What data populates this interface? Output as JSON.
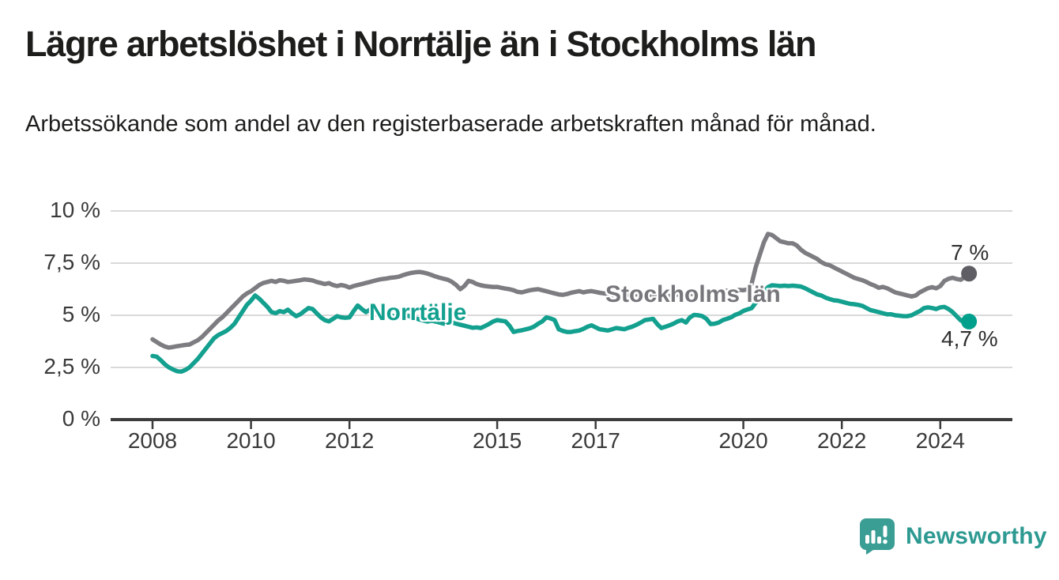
{
  "title": "Lägre arbetslöshet i Norrtälje än i Stockholms län",
  "subtitle": "Arbetssökande som andel av den registerbaserade arbetskraften månad för månad.",
  "logo": {
    "text": "Newsworthy"
  },
  "colors": {
    "stockholm_line": "#7c7c81",
    "stockholm_dot": "#5e5e64",
    "norrtalje_line": "#13a08f",
    "norrtalje_dot": "#00a08c",
    "gridline": "#d9d9d9",
    "axis": "#3c3c3c",
    "label_text": "#3a3a3a"
  },
  "chart_data": {
    "type": "line",
    "title": "Lägre arbetslöshet i Norrtälje än i Stockholms län",
    "subtitle": "Arbetssökande som andel av den registerbaserade arbetskraften månad för månad.",
    "unit": "%",
    "x_start_year": 2008,
    "points_per_year": 12,
    "x_end_label_note": "last point ≈ mitten av 2024",
    "ylim": [
      0,
      10
    ],
    "grid": true,
    "legend_position": "inline-labels",
    "y_ticks": [
      {
        "value": 0,
        "label": "0 %"
      },
      {
        "value": 2.5,
        "label": "2,5 %"
      },
      {
        "value": 5,
        "label": "5 %"
      },
      {
        "value": 7.5,
        "label": "7,5 %"
      },
      {
        "value": 10,
        "label": "10 %"
      }
    ],
    "x_ticks": [
      {
        "year": 2008,
        "label": "2008"
      },
      {
        "year": 2010,
        "label": "2010"
      },
      {
        "year": 2012,
        "label": "2012"
      },
      {
        "year": 2015,
        "label": "2015"
      },
      {
        "year": 2017,
        "label": "2017"
      },
      {
        "year": 2020,
        "label": "2020"
      },
      {
        "year": 2022,
        "label": "2022"
      },
      {
        "year": 2024,
        "label": "2024"
      }
    ],
    "series": [
      {
        "name": "Stockholms län",
        "color": "#7c7c81",
        "dot_color": "#5e5e64",
        "end_label": "7 %",
        "end_value": 7.0,
        "values": [
          3.85,
          3.72,
          3.6,
          3.5,
          3.45,
          3.48,
          3.52,
          3.55,
          3.58,
          3.6,
          3.7,
          3.8,
          3.95,
          4.15,
          4.35,
          4.55,
          4.75,
          4.9,
          5.1,
          5.3,
          5.5,
          5.7,
          5.9,
          6.05,
          6.15,
          6.3,
          6.45,
          6.55,
          6.6,
          6.65,
          6.6,
          6.68,
          6.65,
          6.6,
          6.62,
          6.65,
          6.68,
          6.72,
          6.7,
          6.67,
          6.6,
          6.55,
          6.5,
          6.54,
          6.45,
          6.4,
          6.45,
          6.41,
          6.33,
          6.4,
          6.45,
          6.5,
          6.55,
          6.6,
          6.65,
          6.7,
          6.74,
          6.76,
          6.8,
          6.82,
          6.85,
          6.92,
          6.98,
          7.03,
          7.06,
          7.08,
          7.05,
          7.0,
          6.93,
          6.86,
          6.8,
          6.75,
          6.7,
          6.6,
          6.45,
          6.25,
          6.4,
          6.65,
          6.6,
          6.5,
          6.44,
          6.4,
          6.38,
          6.36,
          6.36,
          6.32,
          6.28,
          6.25,
          6.2,
          6.12,
          6.1,
          6.15,
          6.2,
          6.23,
          6.25,
          6.2,
          6.15,
          6.1,
          6.05,
          6.0,
          5.98,
          6.02,
          6.08,
          6.12,
          6.16,
          6.1,
          6.14,
          6.16,
          6.12,
          6.08,
          6.05,
          6.02,
          5.98,
          5.95,
          5.92,
          5.95,
          6.0,
          6.02,
          6.0,
          6.02,
          5.98,
          5.95,
          5.9,
          5.88,
          5.92,
          5.96,
          5.92,
          5.96,
          6.0,
          6.04,
          6.0,
          6.04,
          6.0,
          6.05,
          6.08,
          6.05,
          6.1,
          6.14,
          6.1,
          6.14,
          6.18,
          6.14,
          6.18,
          6.22,
          6.2,
          6.25,
          6.5,
          7.3,
          7.9,
          8.5,
          8.9,
          8.85,
          8.7,
          8.55,
          8.5,
          8.45,
          8.45,
          8.35,
          8.15,
          8.0,
          7.9,
          7.8,
          7.7,
          7.55,
          7.45,
          7.4,
          7.3,
          7.2,
          7.1,
          7.0,
          6.9,
          6.8,
          6.74,
          6.68,
          6.6,
          6.5,
          6.42,
          6.32,
          6.36,
          6.3,
          6.2,
          6.1,
          6.05,
          6.0,
          5.95,
          5.9,
          5.95,
          6.1,
          6.2,
          6.3,
          6.35,
          6.29,
          6.4,
          6.65,
          6.75,
          6.8,
          6.74,
          6.7,
          6.85,
          7.0
        ]
      },
      {
        "name": "Norrtälje",
        "color": "#13a08f",
        "dot_color": "#00a08c",
        "end_label": "4,7 %",
        "end_value": 4.7,
        "values": [
          3.05,
          3.02,
          2.85,
          2.65,
          2.5,
          2.4,
          2.32,
          2.3,
          2.38,
          2.5,
          2.7,
          2.9,
          3.15,
          3.4,
          3.65,
          3.9,
          4.05,
          4.15,
          4.25,
          4.4,
          4.6,
          4.9,
          5.2,
          5.5,
          5.7,
          5.95,
          5.8,
          5.6,
          5.4,
          5.15,
          5.1,
          5.2,
          5.15,
          5.27,
          5.1,
          4.96,
          5.05,
          5.2,
          5.35,
          5.3,
          5.1,
          4.9,
          4.77,
          4.71,
          4.83,
          4.96,
          4.9,
          4.88,
          4.9,
          5.2,
          5.47,
          5.3,
          5.15,
          5.27,
          5.1,
          5.0,
          4.92,
          4.96,
          5.0,
          4.95,
          4.9,
          4.95,
          5.0,
          4.92,
          4.86,
          4.8,
          4.75,
          4.7,
          4.74,
          4.7,
          4.65,
          4.6,
          4.62,
          4.66,
          4.6,
          4.55,
          4.5,
          4.45,
          4.4,
          4.42,
          4.39,
          4.48,
          4.58,
          4.7,
          4.77,
          4.74,
          4.71,
          4.5,
          4.2,
          4.25,
          4.28,
          4.33,
          4.38,
          4.46,
          4.6,
          4.71,
          4.9,
          4.85,
          4.77,
          4.33,
          4.25,
          4.2,
          4.2,
          4.24,
          4.27,
          4.35,
          4.45,
          4.52,
          4.42,
          4.33,
          4.3,
          4.27,
          4.33,
          4.39,
          4.36,
          4.33,
          4.4,
          4.46,
          4.55,
          4.65,
          4.77,
          4.8,
          4.83,
          4.58,
          4.39,
          4.45,
          4.52,
          4.6,
          4.71,
          4.77,
          4.65,
          4.9,
          5.02,
          5.0,
          4.96,
          4.83,
          4.58,
          4.6,
          4.65,
          4.77,
          4.83,
          4.9,
          5.02,
          5.09,
          5.21,
          5.28,
          5.34,
          5.6,
          5.9,
          6.15,
          6.35,
          6.44,
          6.42,
          6.4,
          6.42,
          6.4,
          6.42,
          6.4,
          6.38,
          6.3,
          6.2,
          6.1,
          6.0,
          5.95,
          5.85,
          5.78,
          5.72,
          5.7,
          5.65,
          5.6,
          5.55,
          5.53,
          5.5,
          5.45,
          5.35,
          5.25,
          5.2,
          5.15,
          5.1,
          5.05,
          5.05,
          5.0,
          4.98,
          4.96,
          4.96,
          5.0,
          5.11,
          5.2,
          5.34,
          5.38,
          5.35,
          5.3,
          5.38,
          5.4,
          5.3,
          5.15,
          4.95,
          4.75,
          4.65,
          4.7
        ]
      }
    ]
  }
}
